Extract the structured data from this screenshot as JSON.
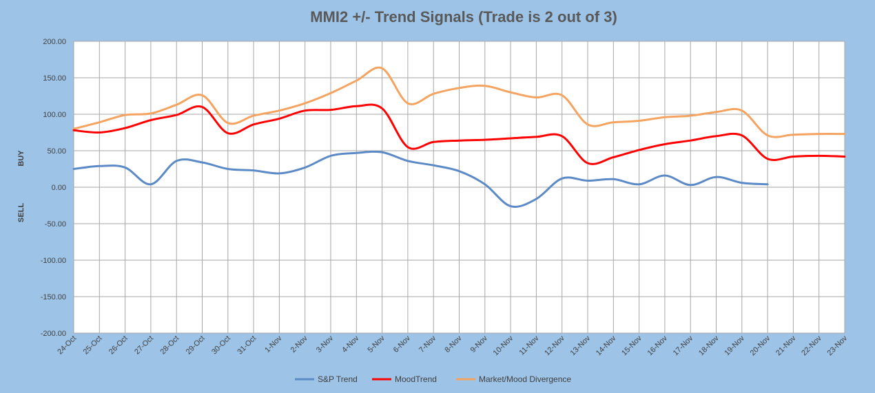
{
  "chart_data": {
    "type": "line",
    "title": "MMI2 +/- Trend Signals (Trade is 2 out of 3)",
    "xlabel": "",
    "ylabel": "",
    "side_labels": {
      "upper": "BUY",
      "lower": "SELL"
    },
    "ylim": [
      -200,
      200
    ],
    "yticks": [
      200,
      150,
      100,
      50,
      0,
      -50,
      -100,
      -150,
      -200
    ],
    "ytick_labels": [
      "200.00",
      "150.00",
      "100.00",
      "50.00",
      "0.00",
      "-50.00",
      "-100.00",
      "-150.00",
      "-200.00"
    ],
    "grid": true,
    "legend_position": "bottom",
    "categories": [
      "24-Oct",
      "25-Oct",
      "26-Oct",
      "27-Oct",
      "28-Oct",
      "29-Oct",
      "30-Oct",
      "31-Oct",
      "1-Nov",
      "2-Nov",
      "3-Nov",
      "4-Nov",
      "5-Nov",
      "6-Nov",
      "7-Nov",
      "8-Nov",
      "9-Nov",
      "10-Nov",
      "11-Nov",
      "12-Nov",
      "13-Nov",
      "14-Nov",
      "15-Nov",
      "16-Nov",
      "17-Nov",
      "18-Nov",
      "19-Nov",
      "20-Nov",
      "21-Nov",
      "22-Nov",
      "23-Nov"
    ],
    "series": [
      {
        "name": "S&P Trend",
        "color": "#5b8ac6",
        "values": [
          25,
          29,
          27,
          4,
          36,
          34,
          25,
          23,
          19,
          27,
          43,
          47,
          48,
          36,
          30,
          22,
          4,
          -26,
          -16,
          12,
          9,
          11,
          4,
          16,
          3,
          14,
          6,
          4,
          null,
          null,
          null
        ]
      },
      {
        "name": "MoodTrend",
        "color": "#ff0000",
        "values": [
          78,
          75,
          81,
          92,
          99,
          110,
          74,
          86,
          94,
          105,
          106,
          111,
          108,
          55,
          62,
          64,
          65,
          67,
          69,
          70,
          33,
          41,
          51,
          59,
          64,
          70,
          71,
          39,
          42,
          43,
          42
        ]
      },
      {
        "name": "Market/Mood Divergence",
        "color": "#f4a460",
        "values": [
          80,
          89,
          99,
          101,
          113,
          126,
          88,
          98,
          105,
          115,
          129,
          146,
          163,
          115,
          128,
          136,
          139,
          130,
          123,
          126,
          86,
          89,
          91,
          96,
          98,
          103,
          105,
          71,
          72,
          73,
          73
        ]
      }
    ]
  }
}
